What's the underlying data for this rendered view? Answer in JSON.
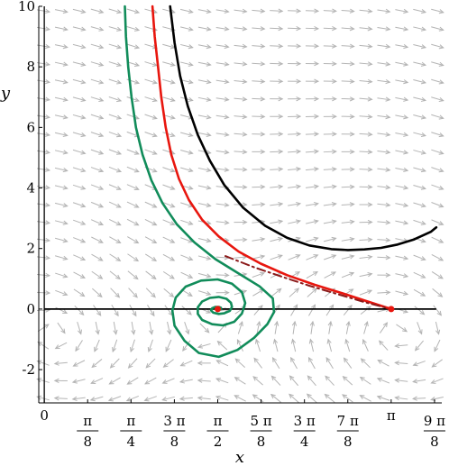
{
  "chart_data": {
    "type": "line",
    "title": "",
    "xlabel": "x",
    "ylabel": "y",
    "xlim": [
      -0.05,
      3.6
    ],
    "ylim": [
      -3.1,
      10.0
    ],
    "grid": false,
    "legend": "none",
    "y_ticks": [
      -2,
      0,
      2,
      4,
      6,
      8,
      10
    ],
    "y_tick_labels": [
      "-2",
      "0",
      "2",
      "4",
      "6",
      "8",
      "10"
    ],
    "x_ticks": [
      {
        "value": 0,
        "num": "0",
        "den": ""
      },
      {
        "value": 0.3927,
        "num": "π",
        "den": "8"
      },
      {
        "value": 0.7854,
        "num": "π",
        "den": "4"
      },
      {
        "value": 1.1781,
        "num": "3 π",
        "den": "8"
      },
      {
        "value": 1.5708,
        "num": "π",
        "den": "2"
      },
      {
        "value": 1.9635,
        "num": "5 π",
        "den": "8"
      },
      {
        "value": 2.3562,
        "num": "3 π",
        "den": "4"
      },
      {
        "value": 2.7489,
        "num": "7 π",
        "den": "8"
      },
      {
        "value": 3.1416,
        "num": "π",
        "den": ""
      },
      {
        "value": 3.5343,
        "num": "9 π",
        "den": "8"
      }
    ],
    "colors": {
      "green": "#118c5a",
      "red": "#e8160e",
      "black": "#000000",
      "darkred": "#8b1a1a",
      "field": "#b4b4b4"
    },
    "equilibria": [
      {
        "x": 1.5708,
        "y": 0,
        "color": "#e8160e"
      },
      {
        "x": 3.1416,
        "y": 0,
        "color": "#e8160e"
      }
    ],
    "series": [
      {
        "color": "#000000",
        "style": "solid",
        "points": [
          [
            1.14,
            10
          ],
          [
            1.18,
            8.8
          ],
          [
            1.23,
            7.7
          ],
          [
            1.3,
            6.7
          ],
          [
            1.39,
            5.75
          ],
          [
            1.5,
            4.9
          ],
          [
            1.63,
            4.1
          ],
          [
            1.8,
            3.35
          ],
          [
            2.0,
            2.75
          ],
          [
            2.2,
            2.35
          ],
          [
            2.4,
            2.1
          ],
          [
            2.6,
            1.98
          ],
          [
            2.75,
            1.95
          ],
          [
            2.9,
            1.97
          ],
          [
            3.05,
            2.02
          ],
          [
            3.2,
            2.13
          ],
          [
            3.35,
            2.3
          ],
          [
            3.5,
            2.55
          ],
          [
            3.55,
            2.7
          ]
        ]
      },
      {
        "color": "#e8160e",
        "style": "solid",
        "points": [
          [
            0.98,
            10
          ],
          [
            1.0,
            9.0
          ],
          [
            1.03,
            8.0
          ],
          [
            1.06,
            7.0
          ],
          [
            1.1,
            6.0
          ],
          [
            1.15,
            5.1
          ],
          [
            1.22,
            4.3
          ],
          [
            1.31,
            3.6
          ],
          [
            1.43,
            2.95
          ],
          [
            1.58,
            2.4
          ],
          [
            1.76,
            1.9
          ],
          [
            1.96,
            1.5
          ],
          [
            2.2,
            1.12
          ],
          [
            2.45,
            0.8
          ],
          [
            2.7,
            0.52
          ],
          [
            2.93,
            0.25
          ],
          [
            3.1416,
            0.0
          ]
        ]
      },
      {
        "color": "#8b1a1a",
        "style": "dashdot",
        "points": [
          [
            1.64,
            1.75
          ],
          [
            1.9,
            1.38
          ],
          [
            2.15,
            1.07
          ],
          [
            2.4,
            0.77
          ],
          [
            2.65,
            0.5
          ],
          [
            2.9,
            0.23
          ],
          [
            3.1416,
            0.0
          ]
        ]
      },
      {
        "color": "#118c5a",
        "style": "solid",
        "points": [
          [
            0.73,
            10
          ],
          [
            0.74,
            9.0
          ],
          [
            0.76,
            8.0
          ],
          [
            0.79,
            7.0
          ],
          [
            0.83,
            6.0
          ],
          [
            0.89,
            5.1
          ],
          [
            0.97,
            4.25
          ],
          [
            1.07,
            3.5
          ],
          [
            1.2,
            2.8
          ],
          [
            1.36,
            2.2
          ],
          [
            1.55,
            1.65
          ],
          [
            1.75,
            1.2
          ],
          [
            1.95,
            0.75
          ],
          [
            2.07,
            0.35
          ],
          [
            2.08,
            -0.1
          ],
          [
            2.02,
            -0.5
          ],
          [
            1.9,
            -0.95
          ],
          [
            1.75,
            -1.35
          ],
          [
            1.58,
            -1.58
          ],
          [
            1.4,
            -1.45
          ],
          [
            1.27,
            -1.05
          ],
          [
            1.18,
            -0.55
          ],
          [
            1.16,
            -0.05
          ],
          [
            1.19,
            0.38
          ],
          [
            1.28,
            0.74
          ],
          [
            1.42,
            0.94
          ],
          [
            1.57,
            0.98
          ],
          [
            1.7,
            0.84
          ],
          [
            1.79,
            0.56
          ],
          [
            1.82,
            0.2
          ],
          [
            1.79,
            -0.15
          ],
          [
            1.72,
            -0.42
          ],
          [
            1.62,
            -0.54
          ],
          [
            1.52,
            -0.5
          ],
          [
            1.43,
            -0.36
          ],
          [
            1.39,
            -0.16
          ],
          [
            1.39,
            0.06
          ],
          [
            1.43,
            0.25
          ],
          [
            1.5,
            0.37
          ],
          [
            1.58,
            0.4
          ],
          [
            1.65,
            0.34
          ],
          [
            1.69,
            0.21
          ],
          [
            1.7,
            0.07
          ],
          [
            1.68,
            -0.06
          ],
          [
            1.63,
            -0.14
          ],
          [
            1.58,
            -0.16
          ],
          [
            1.53,
            -0.12
          ],
          [
            1.51,
            -0.04
          ],
          [
            1.52,
            0.03
          ],
          [
            1.55,
            0.07
          ],
          [
            1.58,
            0.07
          ],
          [
            1.6,
            0.04
          ],
          [
            1.6,
            0.0
          ]
        ]
      }
    ]
  }
}
